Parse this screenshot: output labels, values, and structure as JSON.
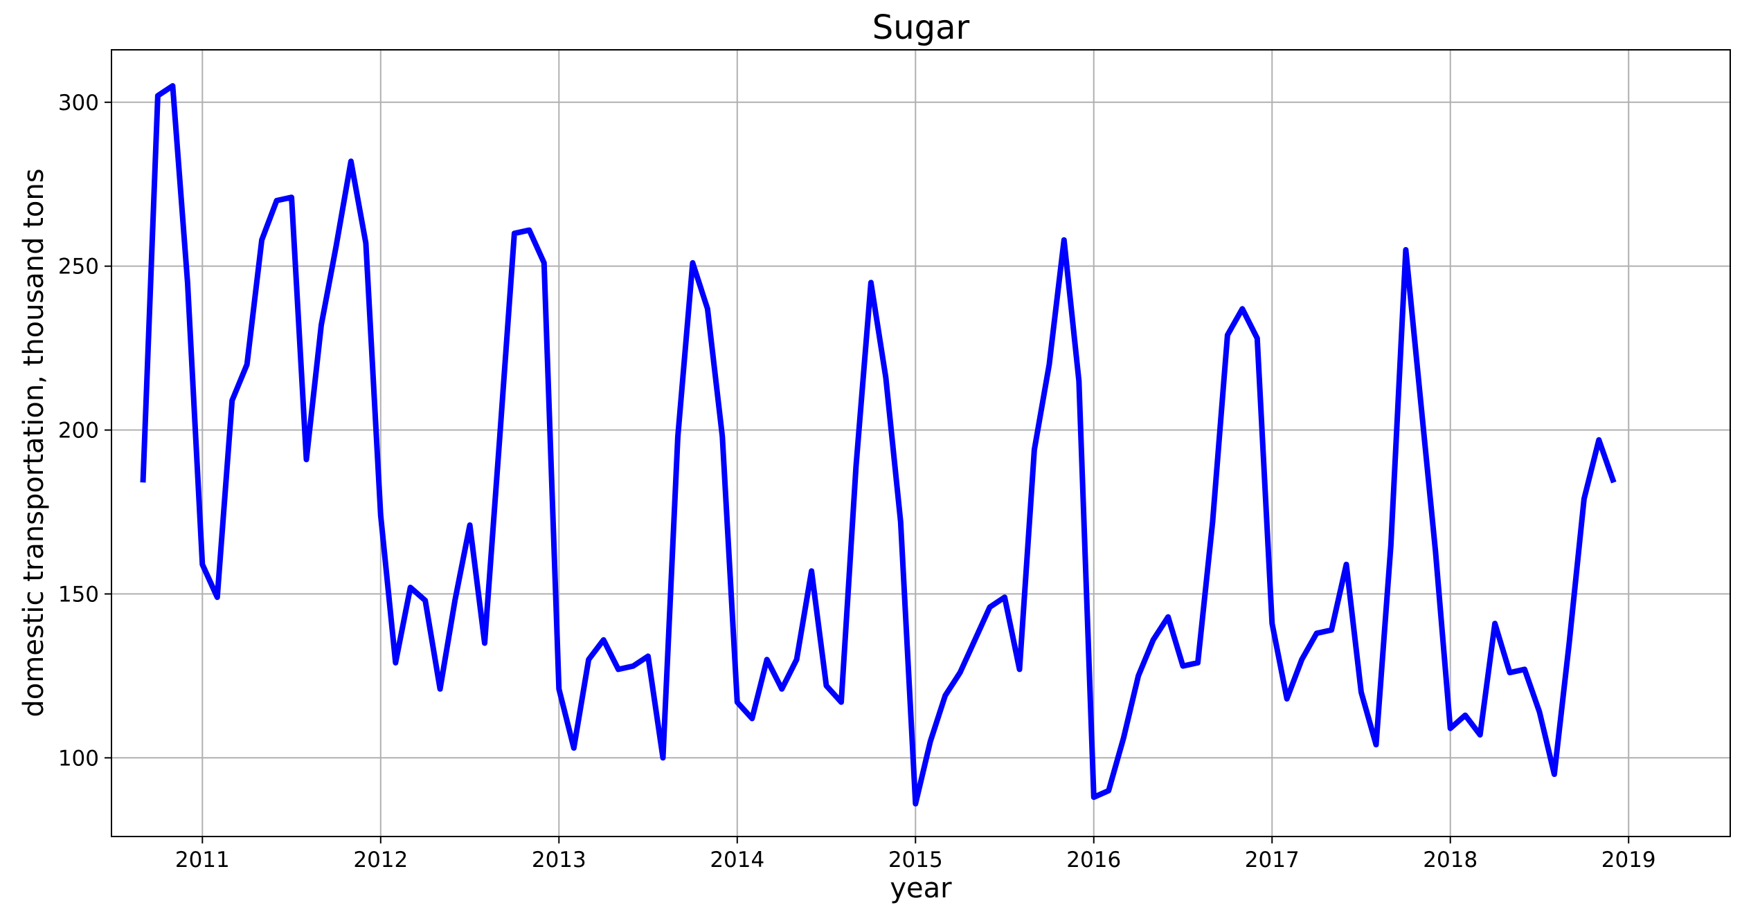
{
  "chart_data": {
    "type": "line",
    "title": "Sugar",
    "xlabel": "year",
    "ylabel": "domestic transportation, thousand tons",
    "xlim": [
      2010.49,
      2019.57
    ],
    "ylim": [
      76,
      316
    ],
    "x_ticks": [
      2011,
      2012,
      2013,
      2014,
      2015,
      2016,
      2017,
      2018,
      2019
    ],
    "x_tick_labels": [
      "2011",
      "2012",
      "2013",
      "2014",
      "2015",
      "2016",
      "2017",
      "2018",
      "2019"
    ],
    "y_ticks": [
      100,
      150,
      200,
      250,
      300
    ],
    "y_tick_labels": [
      "100",
      "150",
      "200",
      "250",
      "300"
    ],
    "grid": true,
    "line_color": "#0000ff",
    "series": [
      {
        "x_start": "2010-09",
        "x_step": "1 month",
        "values": [
          184,
          302,
          305,
          245,
          159,
          149,
          209,
          220,
          258,
          270,
          271,
          191,
          232,
          256,
          282,
          257,
          174,
          129,
          152,
          148,
          121,
          148,
          171,
          135,
          197,
          260,
          261,
          251,
          121,
          103,
          130,
          136,
          127,
          128,
          131,
          100,
          198,
          251,
          237,
          198,
          117,
          112,
          130,
          121,
          130,
          157,
          122,
          117,
          189,
          245,
          216,
          172,
          86,
          105,
          119,
          126,
          136,
          146,
          149,
          127,
          194,
          220,
          258,
          215,
          88,
          90,
          106,
          125,
          136,
          143,
          128,
          129,
          172,
          229,
          237,
          228,
          141,
          118,
          130,
          138,
          139,
          159,
          120,
          104,
          165,
          255,
          209,
          163,
          109,
          113,
          107,
          141,
          126,
          127,
          114,
          95,
          135,
          179,
          197,
          184
        ]
      }
    ]
  }
}
